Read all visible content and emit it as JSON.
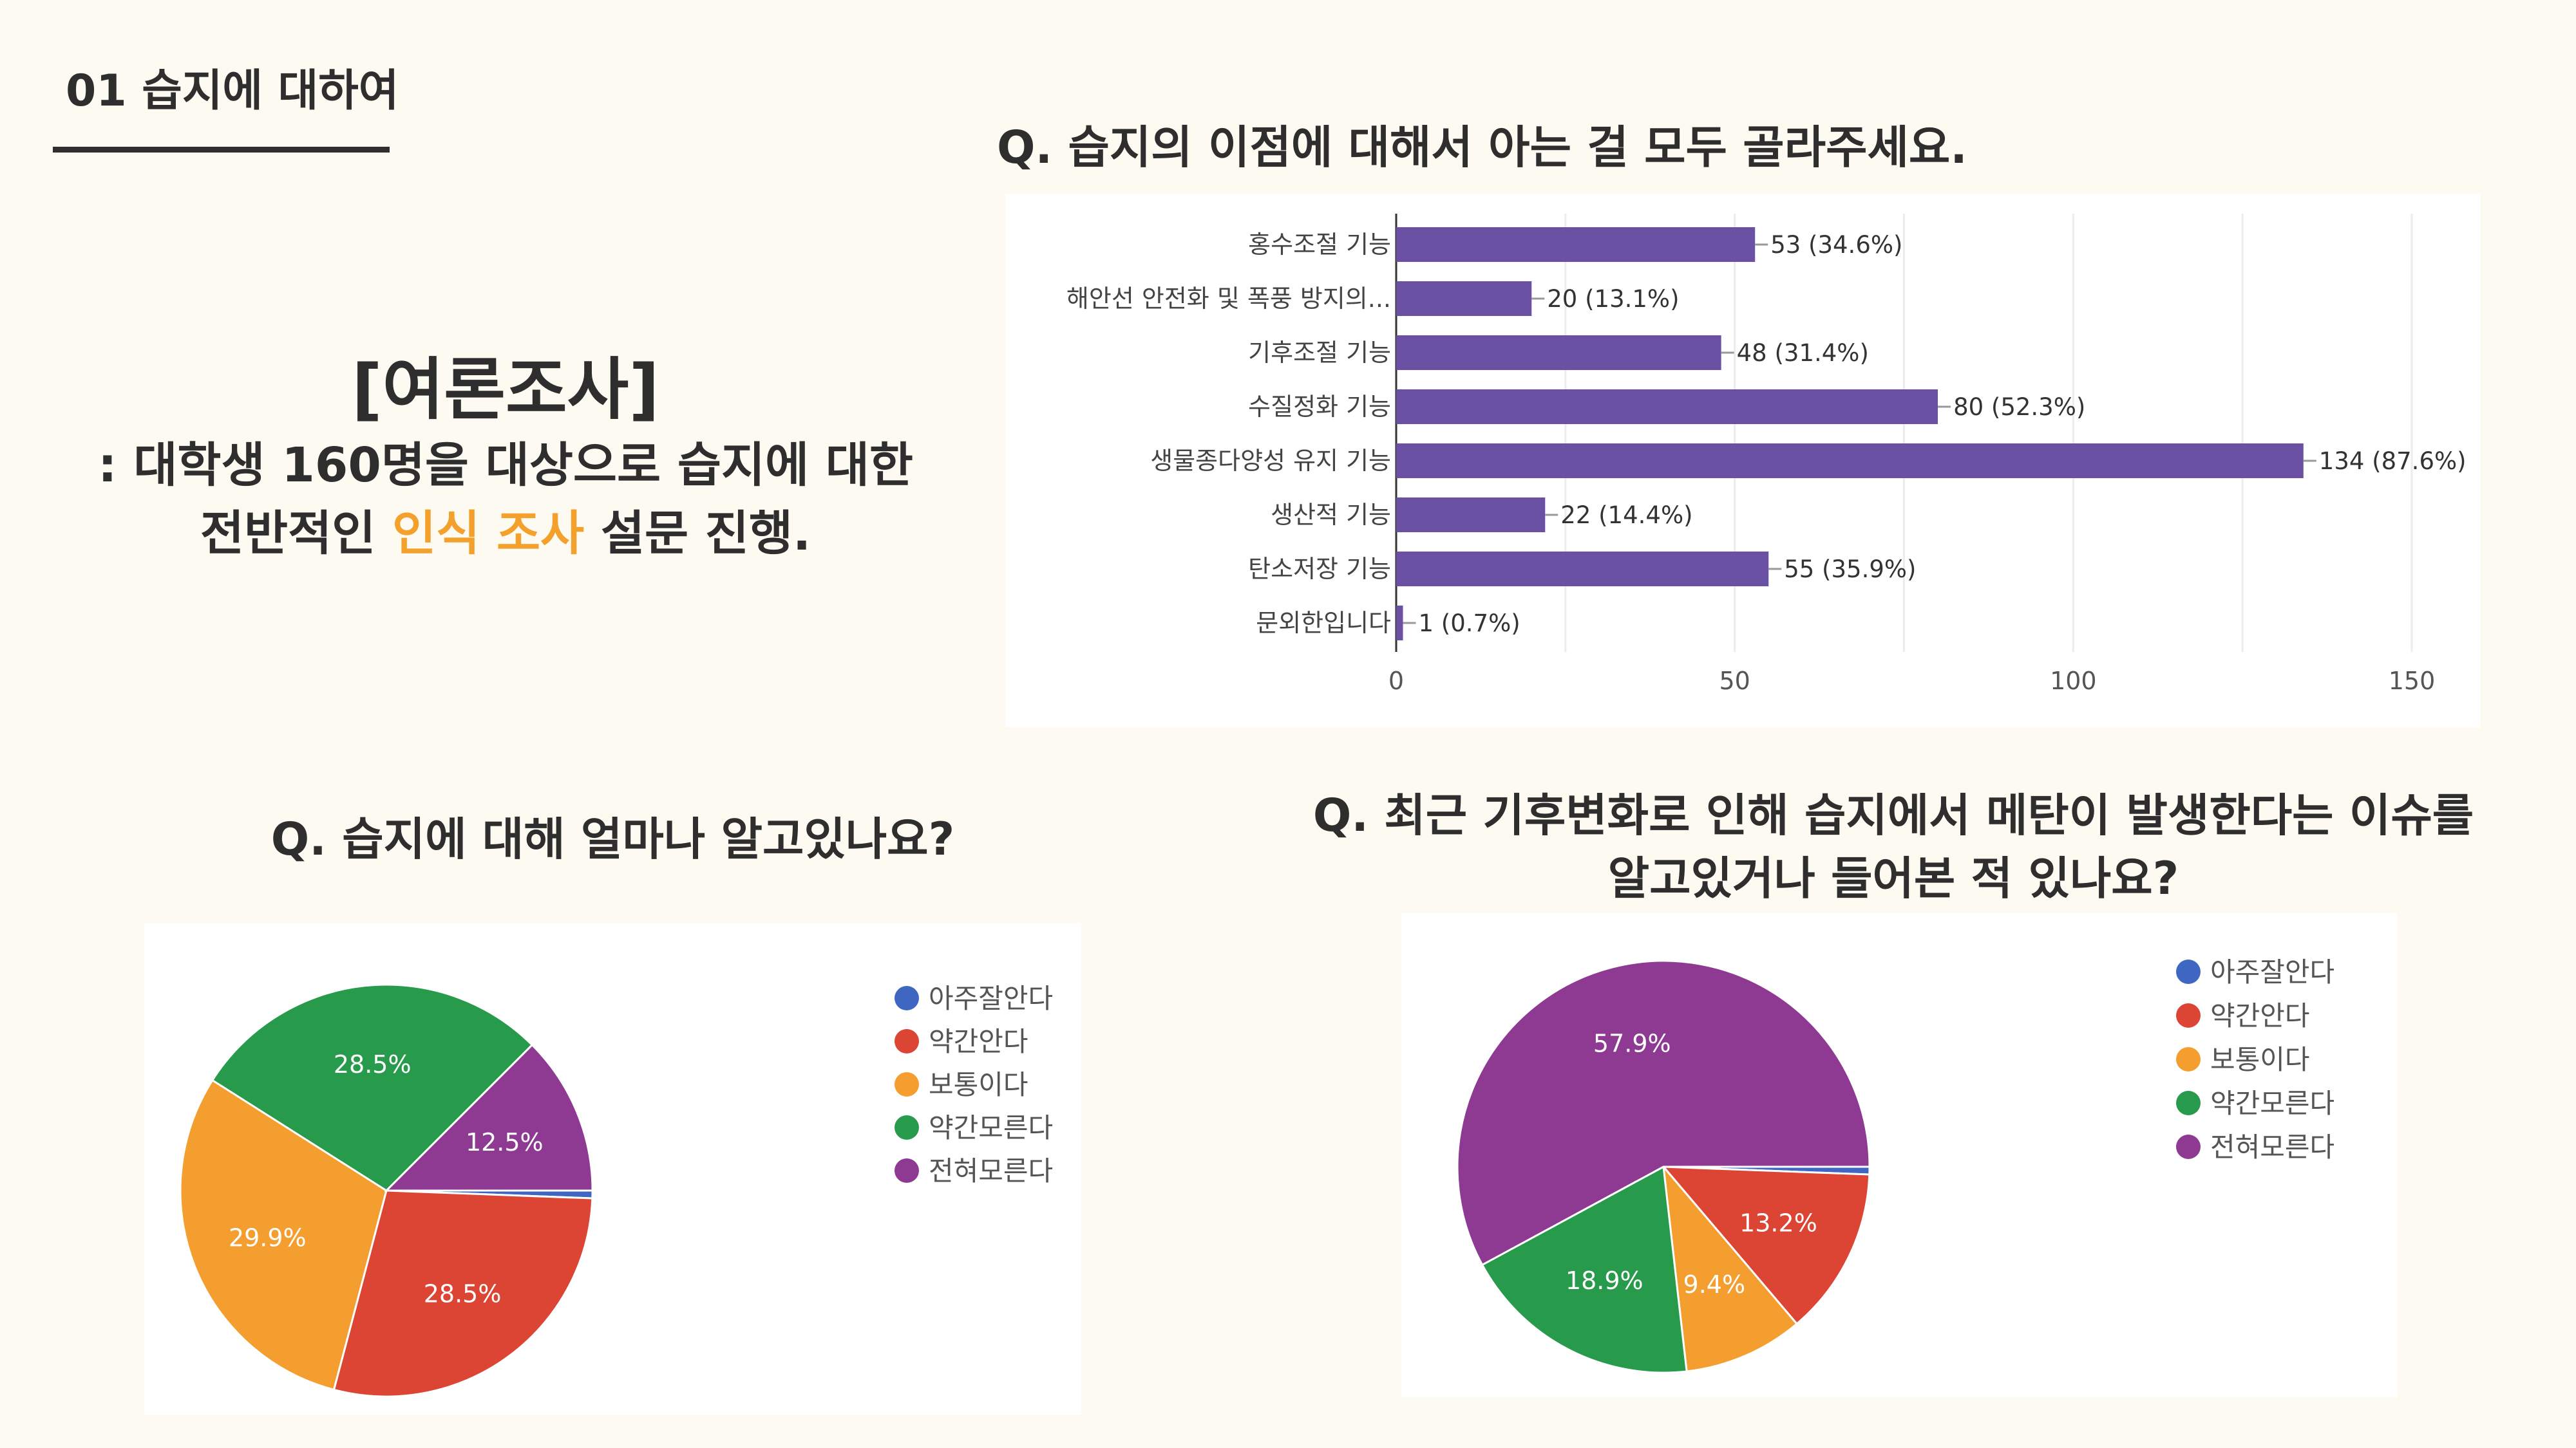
{
  "section": {
    "title": "01 습지에 대하여"
  },
  "survey": {
    "heading": "[여론조사]",
    "line1": ": 대학생 160명을 대상으로 습지에 대한",
    "line2_pre": "전반적인 ",
    "line2_highlight": "인식 조사",
    "line2_post": " 설문 진행.",
    "highlight_color": "#f4a02c"
  },
  "questions": {
    "benefits": "Q. 습지의 이점에 대해서 아는 걸 모두 골라주세요.",
    "awareness": "Q. 습지에 대해 얼마나 알고있나요?",
    "methane_line1": "Q. 최근 기후변화로 인해 습지에서 메탄이 발생한다는 이슈를",
    "methane_line2": "알고있거나 들어본 적 있나요?"
  },
  "chart_data": [
    {
      "type": "bar",
      "orientation": "horizontal",
      "categories": [
        "홍수조절 기능",
        "해안선 안전화 및 폭풍 방지의...",
        "기후조절 기능",
        "수질정화 기능",
        "생물종다양성 유지 기능",
        "생산적 기능",
        "탄소저장 기능",
        "문외한입니다"
      ],
      "values": [
        53,
        20,
        48,
        80,
        134,
        22,
        55,
        1
      ],
      "data_labels": [
        "53 (34.6%)",
        "20 (13.1%)",
        "48 (31.4%)",
        "80 (52.3%)",
        "134 (87.6%)",
        "22 (14.4%)",
        "55 (35.9%)",
        "1 (0.7%)"
      ],
      "xlim": [
        0,
        150
      ],
      "xticks": [
        "0",
        "50",
        "100",
        "150"
      ],
      "grid": true,
      "color": "#6a51a3"
    },
    {
      "type": "pie",
      "categories": [
        "아주잘안다",
        "약간안다",
        "보통이다",
        "약간모른다",
        "전혀모른다"
      ],
      "values": [
        0.6,
        28.5,
        29.9,
        28.5,
        12.5
      ],
      "data_labels": [
        "",
        "28.5%",
        "29.9%",
        "28.5%",
        "12.5%"
      ],
      "colors": [
        "#3f67c2",
        "#dc4433",
        "#f59e30",
        "#279a4c",
        "#8e3a93"
      ],
      "legend": "right"
    },
    {
      "type": "pie",
      "categories": [
        "아주잘안다",
        "약간안다",
        "보통이다",
        "약간모른다",
        "전혀모른다"
      ],
      "values": [
        0.6,
        13.2,
        9.4,
        18.9,
        57.9
      ],
      "data_labels": [
        "",
        "13.2%",
        "9.4%",
        "18.9%",
        "57.9%"
      ],
      "colors": [
        "#3f67c2",
        "#dc4433",
        "#f59e30",
        "#279a4c",
        "#8e3a93"
      ],
      "legend": "right"
    }
  ]
}
